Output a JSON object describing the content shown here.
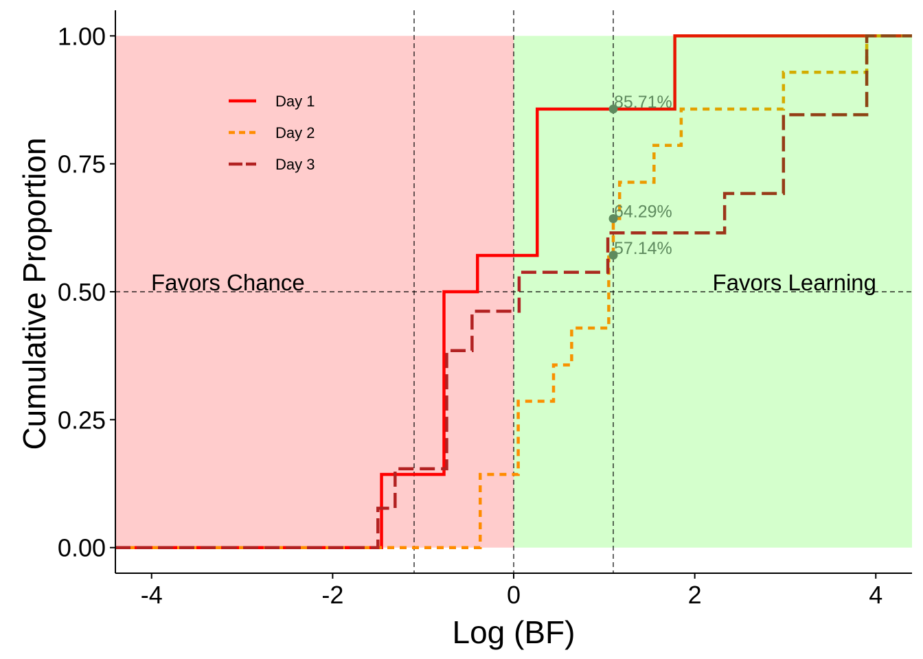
{
  "chart_data": {
    "type": "line",
    "subtype": "step-ecdf",
    "title": "",
    "xlabel": "Log (BF)",
    "ylabel": "Cumulative Proportion",
    "xlim": [
      -4.4,
      4.4
    ],
    "ylim": [
      -0.05,
      1.05
    ],
    "x_ticks": [
      -4,
      -2,
      0,
      2,
      4
    ],
    "x_tick_labels": [
      "-4",
      "-2",
      "0",
      "2",
      "4"
    ],
    "y_ticks": [
      0,
      0.25,
      0.5,
      0.75,
      1
    ],
    "y_tick_labels": [
      "0.00",
      "0.25",
      "0.50",
      "0.75",
      "1.00"
    ],
    "grid": false,
    "legend_position": "top-left",
    "regions": [
      {
        "label": "Favors Chance",
        "x_from": -4.4,
        "x_to": 0,
        "color": "#FFCCCC"
      },
      {
        "label": "Favors Learning",
        "x_from": 0,
        "x_to": 4.4,
        "color": "#D4FFCC"
      }
    ],
    "reference_lines": {
      "vertical": [
        -1.1,
        0,
        1.1
      ],
      "horizontal": [
        0.5
      ],
      "color": "#000000"
    },
    "series": [
      {
        "name": "Day 1",
        "color": "#FF0000",
        "dash": "solid",
        "gradient_end_color": "#CC3300",
        "x": [
          -1.46,
          -0.77,
          -0.4,
          0.26,
          1.78
        ],
        "y": [
          0.143,
          0.5,
          0.571,
          0.857,
          1.0
        ]
      },
      {
        "name": "Day 2",
        "color": "#FF8C00",
        "dash": "short",
        "gradient_end_color": "#C8B400",
        "x": [
          -0.37,
          0.05,
          0.44,
          0.64,
          1.05,
          1.1,
          1.17,
          1.55,
          1.85,
          2.98,
          3.9
        ],
        "y": [
          0.143,
          0.286,
          0.357,
          0.429,
          0.571,
          0.643,
          0.714,
          0.786,
          0.857,
          0.929,
          1.0
        ]
      },
      {
        "name": "Day 3",
        "color": "#B22222",
        "dash": "long",
        "gradient_end_color": "#8B4513",
        "x": [
          -1.5,
          -1.31,
          -0.74,
          -0.46,
          0.06,
          1.04,
          2.33,
          2.98,
          3.9
        ],
        "y": [
          0.077,
          0.154,
          0.385,
          0.462,
          0.538,
          0.615,
          0.692,
          0.846,
          1.0
        ]
      }
    ],
    "annotations": [
      {
        "x": 1.1,
        "y": 0.8571,
        "text": "85.71%"
      },
      {
        "x": 1.1,
        "y": 0.6429,
        "text": "64.29%"
      },
      {
        "x": 1.1,
        "y": 0.5714,
        "text": "57.14%"
      }
    ],
    "annotation_color": "#5E8A5E",
    "legend_entries": [
      "Day 1",
      "Day 2",
      "Day 3"
    ],
    "region_labels": [
      "Favors Chance",
      "Favors Learning"
    ]
  }
}
